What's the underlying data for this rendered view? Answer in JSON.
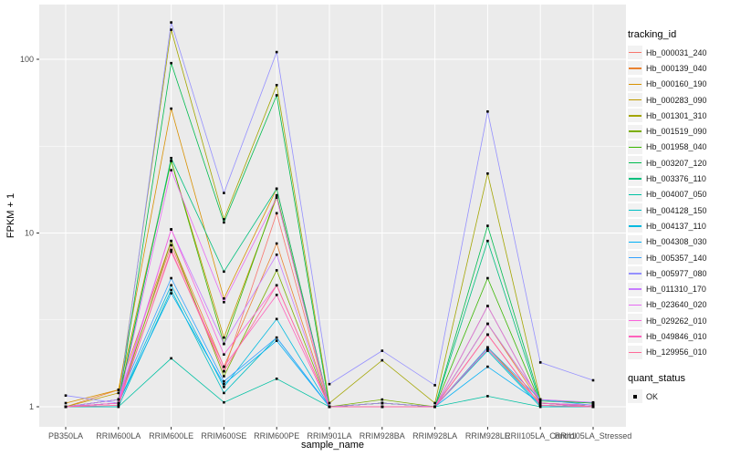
{
  "figure": {
    "bg": "#FFFFFF",
    "panel_bg": "#EBEBEB",
    "grid_color": "#FFFFFF",
    "tick_label_color": "#4D4D4D",
    "axis_title_color": "#000000",
    "point_color": "#000000"
  },
  "chart_data": {
    "type": "line",
    "title": "",
    "xlabel": "sample_name",
    "ylabel": "FPKM + 1",
    "y_scale": "log10",
    "y_ticks": [
      1,
      10,
      100
    ],
    "y_minor_ticks": [
      3.162,
      31.623
    ],
    "ylim": [
      0.77,
      280
    ],
    "grid": true,
    "legend_position": "right",
    "categories": [
      "PB350LA",
      "RRIM600LA",
      "RRIM600LE",
      "RRIM600SE",
      "RRIM600PE",
      "RRIM901LA",
      "RRIM928BA",
      "RRIM928LA",
      "RRIM928LE",
      "RRII105LA_Control",
      "RRII105LA_Stressed"
    ],
    "series": [
      {
        "name": "Hb_000031_240",
        "color": "#F8766D",
        "values": [
          1.0,
          1.1,
          8.5,
          1.6,
          13.0,
          1.0,
          1.0,
          1.0,
          2.6,
          1.02,
          1.0
        ]
      },
      {
        "name": "Hb_000139_040",
        "color": "#EA8331",
        "values": [
          1.0,
          1.25,
          9.0,
          1.7,
          8.7,
          1.0,
          1.05,
          1.0,
          3.0,
          1.05,
          1.02
        ]
      },
      {
        "name": "Hb_000160_190",
        "color": "#D89000",
        "values": [
          1.05,
          1.25,
          52.0,
          4.2,
          18.0,
          1.0,
          1.05,
          1.0,
          3.0,
          1.1,
          1.05
        ]
      },
      {
        "name": "Hb_000283_090",
        "color": "#C09B00",
        "values": [
          1.0,
          1.2,
          26.0,
          2.5,
          16.0,
          1.0,
          1.0,
          1.0,
          2.2,
          1.05,
          1.0
        ]
      },
      {
        "name": "Hb_001301_310",
        "color": "#A3A500",
        "values": [
          1.0,
          1.1,
          148.0,
          12.0,
          71.0,
          1.05,
          1.85,
          1.05,
          22.0,
          1.1,
          1.05
        ]
      },
      {
        "name": "Hb_001519_090",
        "color": "#7CAE00",
        "values": [
          1.0,
          1.05,
          9.0,
          1.5,
          6.1,
          1.0,
          1.1,
          1.0,
          3.8,
          1.05,
          1.0
        ]
      },
      {
        "name": "Hb_001958_040",
        "color": "#39B600",
        "values": [
          1.0,
          1.1,
          26.0,
          2.3,
          16.5,
          1.0,
          1.05,
          1.0,
          5.5,
          1.05,
          1.02
        ]
      },
      {
        "name": "Hb_003207_120",
        "color": "#00BB4E",
        "values": [
          1.0,
          1.05,
          95.0,
          11.5,
          62.0,
          1.0,
          1.05,
          1.0,
          11.0,
          1.08,
          1.05
        ]
      },
      {
        "name": "Hb_003376_110",
        "color": "#00BF7D",
        "values": [
          1.0,
          1.05,
          27.0,
          6.0,
          18.0,
          1.0,
          1.05,
          1.0,
          9.0,
          1.05,
          1.0
        ]
      },
      {
        "name": "Hb_004007_050",
        "color": "#00C1A3",
        "values": [
          1.0,
          1.0,
          1.9,
          1.06,
          1.45,
          1.0,
          1.0,
          1.0,
          1.15,
          1.0,
          1.0
        ]
      },
      {
        "name": "Hb_004128_150",
        "color": "#00BFC4",
        "values": [
          1.0,
          1.0,
          4.7,
          1.2,
          2.5,
          1.0,
          1.0,
          1.0,
          2.1,
          1.0,
          1.0
        ]
      },
      {
        "name": "Hb_004137_110",
        "color": "#00BAE0",
        "values": [
          1.0,
          1.05,
          5.0,
          1.3,
          3.2,
          1.0,
          1.0,
          1.0,
          2.15,
          1.02,
          1.0
        ]
      },
      {
        "name": "Hb_004308_030",
        "color": "#00B0F6",
        "values": [
          1.0,
          1.05,
          4.5,
          1.35,
          2.4,
          1.0,
          1.0,
          1.0,
          1.7,
          1.05,
          1.0
        ]
      },
      {
        "name": "Hb_005357_140",
        "color": "#35A2FF",
        "values": [
          1.0,
          1.1,
          5.5,
          1.4,
          2.5,
          1.0,
          1.0,
          1.0,
          2.2,
          1.1,
          1.02
        ]
      },
      {
        "name": "Hb_005977_080",
        "color": "#9590FF",
        "values": [
          1.16,
          1.05,
          163.0,
          17.0,
          110.0,
          1.35,
          2.1,
          1.33,
          50.0,
          1.8,
          1.42
        ]
      },
      {
        "name": "Hb_011310_170",
        "color": "#C77CFF",
        "values": [
          1.0,
          1.1,
          10.5,
          2.3,
          7.5,
          1.0,
          1.05,
          1.0,
          3.0,
          1.1,
          1.06
        ]
      },
      {
        "name": "Hb_023640_020",
        "color": "#E76BF3",
        "values": [
          1.0,
          1.05,
          23.0,
          4.0,
          16.0,
          1.0,
          1.0,
          1.0,
          3.8,
          1.05,
          1.02
        ]
      },
      {
        "name": "Hb_029262_010",
        "color": "#FA62DB",
        "values": [
          1.0,
          1.05,
          10.5,
          2.0,
          5.0,
          1.0,
          1.0,
          1.0,
          2.6,
          1.02,
          1.0
        ]
      },
      {
        "name": "Hb_049846_010",
        "color": "#FF62BC",
        "values": [
          1.0,
          1.05,
          7.8,
          1.7,
          4.4,
          1.0,
          1.0,
          1.0,
          2.15,
          1.05,
          1.0
        ]
      },
      {
        "name": "Hb_129956_010",
        "color": "#FF6A98",
        "values": [
          1.0,
          1.02,
          8.0,
          1.6,
          5.0,
          1.0,
          1.0,
          1.0,
          2.6,
          1.02,
          1.0
        ]
      }
    ],
    "legend": {
      "series_title": "tracking_id",
      "quant_title": "quant_status",
      "quant_value": "OK",
      "key_bg": "#F2F2F2"
    }
  }
}
